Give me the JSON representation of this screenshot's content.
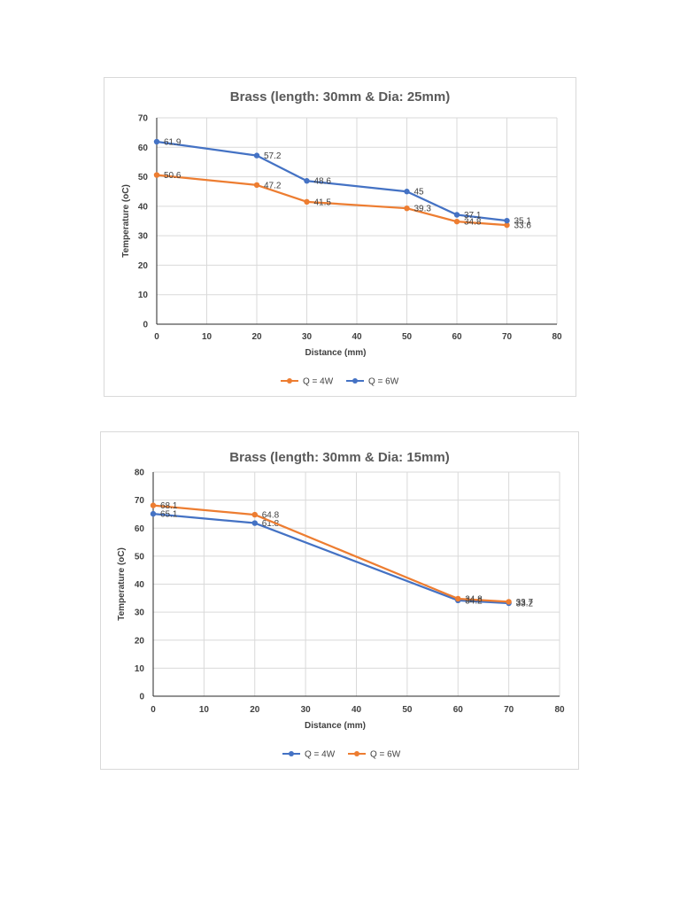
{
  "chart_data": [
    {
      "type": "line",
      "title": "Brass (length: 30mm & Dia: 25mm)",
      "xlabel": "Distance (mm)",
      "ylabel": "Temperature (oC)",
      "xlim": [
        0,
        80
      ],
      "ylim": [
        0,
        70
      ],
      "xticks": [
        0,
        10,
        20,
        30,
        40,
        50,
        60,
        70,
        80
      ],
      "yticks": [
        0,
        10,
        20,
        30,
        40,
        50,
        60,
        70
      ],
      "grid": true,
      "legend_position": "bottom",
      "series": [
        {
          "name": "Q = 4W",
          "color": "#ED7D31",
          "x": [
            0,
            20,
            30,
            50,
            60,
            70
          ],
          "y": [
            50.6,
            47.2,
            41.5,
            39.3,
            34.8,
            33.6
          ]
        },
        {
          "name": "Q = 6W",
          "color": "#4472C4",
          "x": [
            0,
            20,
            30,
            50,
            60,
            70
          ],
          "y": [
            61.9,
            57.2,
            48.6,
            45,
            37.1,
            35.1
          ]
        }
      ]
    },
    {
      "type": "line",
      "title": "Brass (length: 30mm & Dia: 15mm)",
      "xlabel": "Distance (mm)",
      "ylabel": "Temperature (oC)",
      "xlim": [
        0,
        80
      ],
      "ylim": [
        0,
        80
      ],
      "xticks": [
        0,
        10,
        20,
        30,
        40,
        50,
        60,
        70,
        80
      ],
      "yticks": [
        0,
        10,
        20,
        30,
        40,
        50,
        60,
        70,
        80
      ],
      "grid": true,
      "legend_position": "bottom",
      "series": [
        {
          "name": "Q = 4W",
          "color": "#4472C4",
          "x": [
            0,
            20,
            60,
            70
          ],
          "y": [
            65.1,
            61.8,
            34.2,
            33.2
          ]
        },
        {
          "name": "Q = 6W",
          "color": "#ED7D31",
          "x": [
            0,
            20,
            60,
            70
          ],
          "y": [
            68.1,
            64.8,
            34.8,
            33.7
          ]
        }
      ]
    }
  ]
}
